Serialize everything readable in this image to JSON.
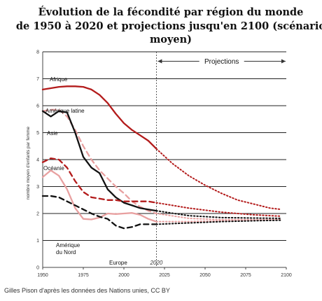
{
  "chart_data": {
    "type": "line",
    "title_line1": "Évolution de la fécondité par région du monde",
    "title_line2": "de 1950 à 2020 et projections jusqu'en 2100 (scénario moyen)",
    "ylabel": "nombre moyen d'enfants par femme",
    "xlim": [
      1950,
      2100
    ],
    "ylim": [
      0,
      8
    ],
    "x_ticks": [
      "1950",
      "1975",
      "2000",
      "2025",
      "2050",
      "2075",
      "2100"
    ],
    "y_ticks": [
      "0",
      "1",
      "2",
      "3",
      "4",
      "5",
      "6",
      "7",
      "8"
    ],
    "projection_start": 2020,
    "projection_marker_label": "2020",
    "projections_label": "Projections",
    "grid": true,
    "series": [
      {
        "name": "Afrique",
        "color": "#b31b1b",
        "style": "solid-then-dotted",
        "x": [
          1950,
          1955,
          1960,
          1965,
          1970,
          1975,
          1980,
          1985,
          1990,
          1995,
          2000,
          2005,
          2010,
          2015,
          2020,
          2030,
          2040,
          2050,
          2060,
          2070,
          2080,
          2090,
          2097
        ],
        "y": [
          6.6,
          6.65,
          6.7,
          6.72,
          6.72,
          6.7,
          6.6,
          6.4,
          6.1,
          5.7,
          5.35,
          5.1,
          4.9,
          4.7,
          4.4,
          3.85,
          3.4,
          3.05,
          2.75,
          2.5,
          2.35,
          2.2,
          2.15
        ]
      },
      {
        "name": "Amérique latine",
        "color": "#e8a0a0",
        "style": "dashed-then-dotted",
        "x": [
          1950,
          1955,
          1960,
          1965,
          1970,
          1975,
          1980,
          1985,
          1990,
          1995,
          2000,
          2005,
          2010,
          2015,
          2020,
          2040,
          2060,
          2080,
          2097
        ],
        "y": [
          5.8,
          5.85,
          5.85,
          5.6,
          5.1,
          4.5,
          4.0,
          3.6,
          3.3,
          3.0,
          2.75,
          2.45,
          2.25,
          2.1,
          2.0,
          1.82,
          1.77,
          1.77,
          1.78
        ]
      },
      {
        "name": "Asie",
        "color": "#111111",
        "style": "solid-then-dotted",
        "x": [
          1950,
          1955,
          1960,
          1965,
          1970,
          1975,
          1980,
          1985,
          1990,
          1995,
          2000,
          2005,
          2010,
          2015,
          2020,
          2040,
          2060,
          2080,
          2097
        ],
        "y": [
          5.8,
          5.6,
          5.8,
          5.75,
          5.0,
          4.1,
          3.7,
          3.5,
          2.9,
          2.6,
          2.4,
          2.3,
          2.2,
          2.15,
          2.1,
          1.92,
          1.85,
          1.83,
          1.82
        ]
      },
      {
        "name": "Océanie",
        "color": "#b31b1b",
        "style": "dashed-then-dotted",
        "x": [
          1950,
          1955,
          1960,
          1965,
          1970,
          1975,
          1980,
          1985,
          1990,
          1995,
          2000,
          2005,
          2010,
          2015,
          2020,
          2040,
          2060,
          2080,
          2097
        ],
        "y": [
          3.9,
          4.05,
          4.0,
          3.7,
          3.2,
          2.8,
          2.6,
          2.55,
          2.5,
          2.5,
          2.45,
          2.45,
          2.45,
          2.45,
          2.4,
          2.2,
          2.05,
          1.95,
          1.9
        ]
      },
      {
        "name": "Amérique du Nord",
        "color": "#e8a0a0",
        "style": "solid-then-dotted",
        "x": [
          1950,
          1955,
          1960,
          1965,
          1970,
          1975,
          1980,
          1985,
          1990,
          1995,
          2000,
          2005,
          2010,
          2015,
          2020,
          2040,
          2060,
          2080,
          2097
        ],
        "y": [
          3.35,
          3.6,
          3.4,
          2.9,
          2.2,
          1.8,
          1.78,
          1.85,
          2.0,
          1.98,
          2.0,
          2.02,
          1.95,
          1.8,
          1.7,
          1.7,
          1.73,
          1.75,
          1.76
        ]
      },
      {
        "name": "Europe",
        "color": "#111111",
        "style": "dashed-then-dotted",
        "x": [
          1950,
          1955,
          1960,
          1965,
          1970,
          1975,
          1980,
          1985,
          1990,
          1995,
          2000,
          2005,
          2010,
          2015,
          2020,
          2040,
          2060,
          2080,
          2097
        ],
        "y": [
          2.65,
          2.65,
          2.6,
          2.45,
          2.3,
          2.15,
          2.0,
          1.88,
          1.8,
          1.55,
          1.45,
          1.5,
          1.6,
          1.6,
          1.6,
          1.65,
          1.7,
          1.73,
          1.75
        ]
      }
    ]
  },
  "credit": "Gilles Pison d'après les données des Nations unies, CC BY"
}
